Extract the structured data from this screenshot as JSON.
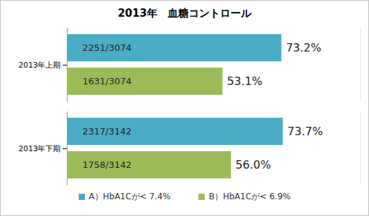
{
  "chart_data": {
    "type": "bar",
    "title": "2013年　血糖コントロール",
    "orientation": "horizontal",
    "categories": [
      "2013年上期",
      "2013年下期"
    ],
    "series": [
      {
        "name": "A）HbA1Cが< 7.4%",
        "color": "#4bacc6",
        "values": [
          73.2,
          73.7
        ],
        "value_labels": [
          "73.2%",
          "73.7%"
        ],
        "ratio_labels": [
          "2251/3074",
          "2317/3142"
        ]
      },
      {
        "name": "B）HbA1Cが< 6.9%",
        "color": "#9bbb59",
        "values": [
          53.1,
          56.0
        ],
        "value_labels": [
          "53.1%",
          "56.0%"
        ],
        "ratio_labels": [
          "1631/3074",
          "1758/3142"
        ]
      }
    ],
    "xlim": [
      0,
      100
    ],
    "tick_labels": false,
    "grid": false,
    "data_labels": true,
    "legend": "bottom"
  }
}
